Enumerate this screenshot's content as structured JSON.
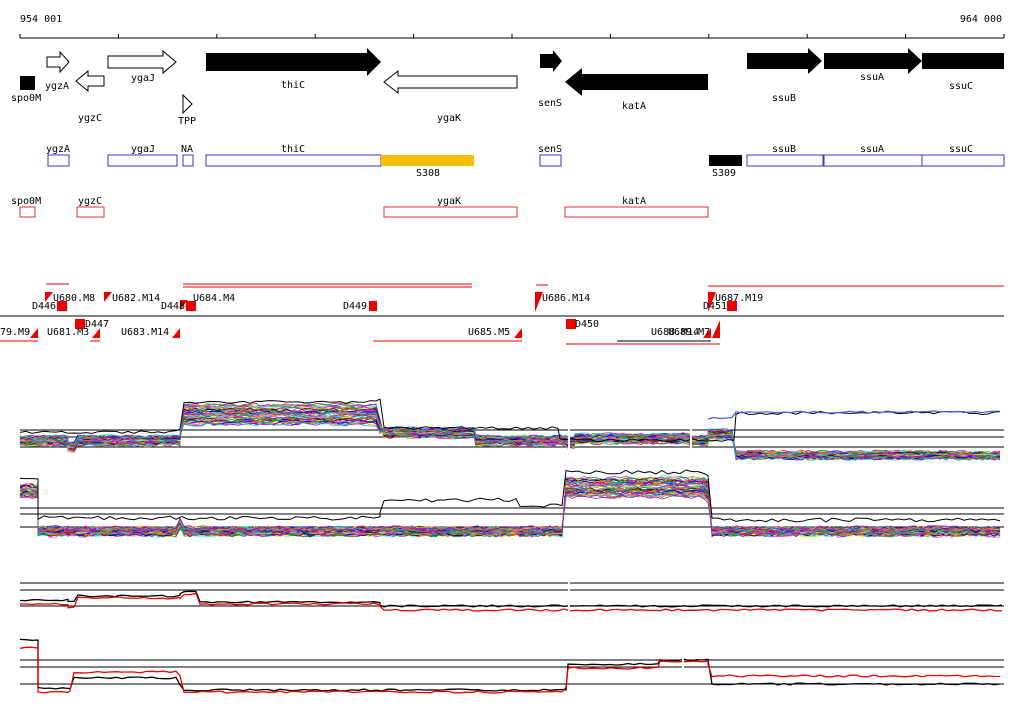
{
  "coordinates": {
    "start": "954 001",
    "end": "964 000"
  },
  "colors": {
    "gene_fill": "#000000",
    "gene_outline": "#000000",
    "annotation_box": "#3333cc",
    "antisense_box": "#dd3333",
    "highlight": "#f5c000",
    "marker_red": "#ee0000",
    "track_line_black": "#000000",
    "track_line_red": "#ee0000"
  },
  "genes": [
    {
      "label": "spo0M",
      "strand": "-",
      "filled": true,
      "kind": "block"
    },
    {
      "label": "ygzA",
      "strand": "+",
      "filled": false
    },
    {
      "label": "ygzC",
      "strand": "-",
      "filled": false
    },
    {
      "label": "ygaJ",
      "strand": "+",
      "filled": false
    },
    {
      "label": "TPP",
      "strand": "+",
      "filled": false,
      "kind": "triangle"
    },
    {
      "label": "thiC",
      "strand": "+",
      "filled": true
    },
    {
      "label": "ygaK",
      "strand": "-",
      "filled": false
    },
    {
      "label": "senS",
      "strand": "+",
      "filled": true
    },
    {
      "label": "katA",
      "strand": "-",
      "filled": true
    },
    {
      "label": "ssuB",
      "strand": "+",
      "filled": true
    },
    {
      "label": "ssuA",
      "strand": "+",
      "filled": true
    },
    {
      "label": "ssuC",
      "strand": "+",
      "filled": true
    }
  ],
  "annotation_row": [
    {
      "label": "ygzA"
    },
    {
      "label": "ygaJ"
    },
    {
      "label": "NA"
    },
    {
      "label": "thiC"
    },
    {
      "label": "S308",
      "highlight": true
    },
    {
      "label": "senS"
    },
    {
      "label": "S309",
      "filled": true
    },
    {
      "label": "ssuB"
    },
    {
      "label": "ssuA"
    },
    {
      "label": "ssuC"
    }
  ],
  "antisense_row": [
    {
      "label": "spo0M"
    },
    {
      "label": "ygzC"
    },
    {
      "label": "ygaK"
    },
    {
      "label": "katA"
    }
  ],
  "segments_upper": [
    {
      "label": "D446"
    },
    {
      "label": "U680.M8"
    },
    {
      "label": "U682.M14"
    },
    {
      "label": "D448"
    },
    {
      "label": "U684.M4"
    },
    {
      "label": "D449"
    },
    {
      "label": "U686.M14"
    },
    {
      "label": "D451"
    },
    {
      "label": "U687.M19"
    }
  ],
  "segments_lower": [
    {
      "label": "79.M9"
    },
    {
      "label": "D447"
    },
    {
      "label": "U681.M3"
    },
    {
      "label": "U683.M14"
    },
    {
      "label": "U685.M5"
    },
    {
      "label": "D450"
    },
    {
      "label": "U688.M14"
    },
    {
      "label": "U689.M7"
    }
  ]
}
